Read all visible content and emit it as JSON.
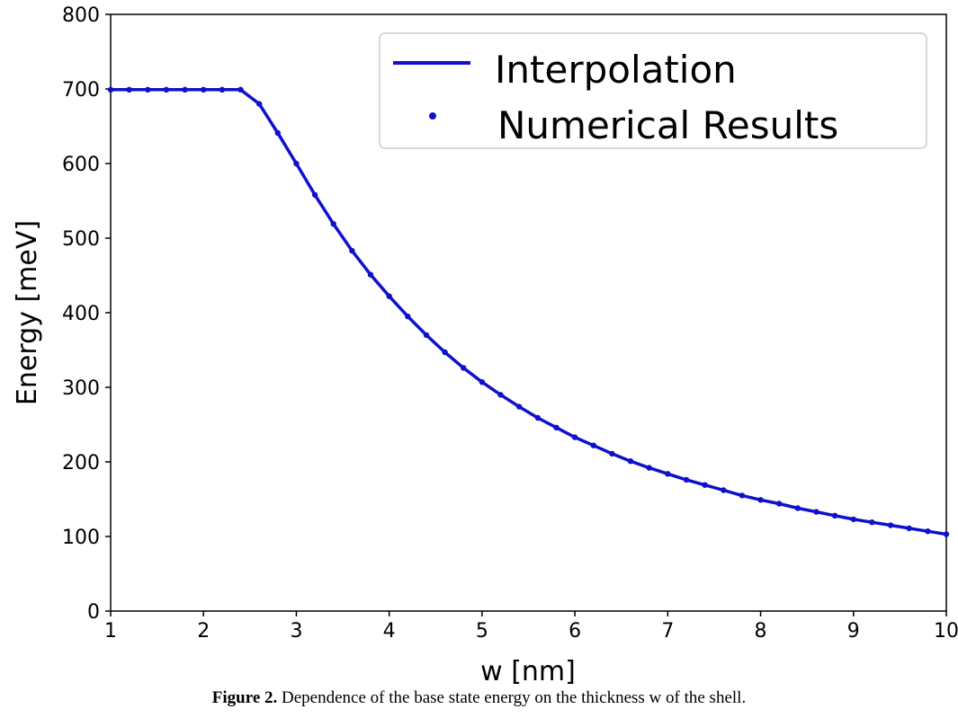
{
  "chart_data": {
    "type": "line",
    "title": "",
    "xlabel": "w [nm]",
    "ylabel": "Energy [meV]",
    "xlim": [
      1,
      10
    ],
    "ylim": [
      0,
      800
    ],
    "xticks": [
      1,
      2,
      3,
      4,
      5,
      6,
      7,
      8,
      9,
      10
    ],
    "yticks": [
      0,
      100,
      200,
      300,
      400,
      500,
      600,
      700,
      800
    ],
    "legend_position": "top-right",
    "grid": false,
    "color": "#1010cc",
    "series": [
      {
        "name": "Interpolation",
        "kind": "line",
        "x": [
          1.0,
          1.2,
          1.4,
          1.6,
          1.8,
          2.0,
          2.2,
          2.4,
          2.6,
          2.8,
          3.0,
          3.2,
          3.4,
          3.6,
          3.8,
          4.0,
          4.2,
          4.4,
          4.6,
          4.8,
          5.0,
          5.2,
          5.4,
          5.6,
          5.8,
          6.0,
          6.2,
          6.4,
          6.6,
          6.8,
          7.0,
          7.2,
          7.4,
          7.6,
          7.8,
          8.0,
          8.2,
          8.4,
          8.6,
          8.8,
          9.0,
          9.2,
          9.4,
          9.6,
          9.8,
          10.0
        ],
        "y": [
          699,
          699,
          699,
          699,
          699,
          699,
          699,
          699,
          680,
          641,
          600,
          558,
          519,
          483,
          451,
          422,
          395,
          370,
          347,
          326,
          307,
          290,
          274,
          259,
          246,
          233,
          222,
          211,
          201,
          192,
          184,
          176,
          169,
          162,
          155,
          149,
          144,
          138,
          133,
          128,
          123,
          119,
          115,
          111,
          107,
          103
        ]
      },
      {
        "name": "Numerical Results",
        "kind": "scatter",
        "x": [
          1.0,
          1.2,
          1.4,
          1.6,
          1.8,
          2.0,
          2.2,
          2.4,
          2.6,
          2.8,
          3.0,
          3.2,
          3.4,
          3.6,
          3.8,
          4.0,
          4.2,
          4.4,
          4.6,
          4.8,
          5.0,
          5.2,
          5.4,
          5.6,
          5.8,
          6.0,
          6.2,
          6.4,
          6.6,
          6.8,
          7.0,
          7.2,
          7.4,
          7.6,
          7.8,
          8.0,
          8.2,
          8.4,
          8.6,
          8.8,
          9.0,
          9.2,
          9.4,
          9.6,
          9.8,
          10.0
        ],
        "y": [
          699,
          699,
          699,
          699,
          699,
          699,
          699,
          699,
          680,
          641,
          600,
          558,
          519,
          483,
          451,
          422,
          395,
          370,
          347,
          326,
          307,
          290,
          274,
          259,
          246,
          233,
          222,
          211,
          201,
          192,
          184,
          176,
          169,
          162,
          155,
          149,
          144,
          138,
          133,
          128,
          123,
          119,
          115,
          111,
          107,
          103
        ]
      }
    ]
  },
  "caption": {
    "label": "Figure 2.",
    "text": " Dependence of the base state energy on the thickness w of the shell."
  }
}
